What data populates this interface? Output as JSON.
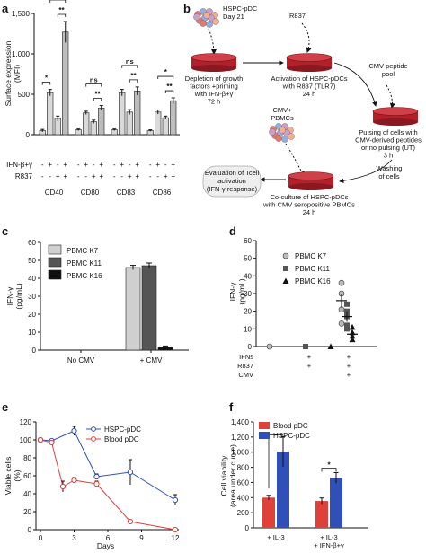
{
  "panels": {
    "a": "a",
    "b": "b",
    "c": "c",
    "d": "d",
    "e": "e",
    "f": "f"
  },
  "colors": {
    "red": "#e0403a",
    "blue": "#3050b8",
    "dish": "#b3202a",
    "bar_light": "#cfcfcf",
    "bar_dark": "#555555",
    "bar_black": "#111111"
  },
  "chart_data": [
    {
      "id": "a",
      "type": "bar",
      "ylabel": "Surface expression (MFI)",
      "ylim": [
        0,
        1500
      ],
      "yticks": [
        "0",
        "500",
        "1,000",
        "1,500"
      ],
      "categories": [
        "CD40",
        "CD80",
        "CD83",
        "CD86"
      ],
      "row_labels": [
        "IFN-β+γ",
        "R837"
      ],
      "condition_signs": {
        "ifn": [
          "-",
          "+",
          "-",
          "+"
        ],
        "r837": [
          "-",
          "-",
          "+",
          "+"
        ]
      },
      "groups": [
        {
          "name": "CD40",
          "values": [
            50,
            520,
            200,
            1270
          ],
          "errors": [
            15,
            40,
            30,
            130
          ]
        },
        {
          "name": "CD80",
          "values": [
            60,
            270,
            160,
            330
          ],
          "errors": [
            10,
            20,
            20,
            30
          ]
        },
        {
          "name": "CD83",
          "values": [
            60,
            520,
            280,
            540
          ],
          "errors": [
            10,
            40,
            30,
            50
          ]
        },
        {
          "name": "CD86",
          "values": [
            50,
            280,
            210,
            420
          ],
          "errors": [
            10,
            25,
            20,
            35
          ]
        }
      ],
      "annotations": [
        {
          "group": 0,
          "bars": [
            0,
            1
          ],
          "text": "*"
        },
        {
          "group": 0,
          "bars": [
            2,
            3
          ],
          "text": "**"
        },
        {
          "group": 0,
          "bars": [
            1,
            3
          ],
          "text": "*"
        },
        {
          "group": 1,
          "bars": [
            1,
            3
          ],
          "text": "ns"
        },
        {
          "group": 1,
          "bars": [
            2,
            3
          ],
          "text": "**"
        },
        {
          "group": 2,
          "bars": [
            1,
            3
          ],
          "text": "ns"
        },
        {
          "group": 2,
          "bars": [
            2,
            3
          ],
          "text": "**"
        },
        {
          "group": 3,
          "bars": [
            1,
            3
          ],
          "text": "*"
        },
        {
          "group": 3,
          "bars": [
            2,
            3
          ],
          "text": "**"
        }
      ]
    },
    {
      "id": "c",
      "type": "bar",
      "ylabel": "IFN-γ (pg/mL)",
      "ylim": [
        0,
        60
      ],
      "yticks": [
        "0",
        "10",
        "20",
        "30",
        "40",
        "50",
        "60"
      ],
      "categories": [
        "No CMV",
        "+ CMV"
      ],
      "series": [
        {
          "name": "PBMC K7",
          "values": [
            0,
            46
          ],
          "errors": [
            0,
            1.2
          ]
        },
        {
          "name": "PBMC K11",
          "values": [
            0,
            47
          ],
          "errors": [
            0,
            1.5
          ]
        },
        {
          "name": "PBMC K16",
          "values": [
            0,
            1.5
          ],
          "errors": [
            0,
            0.8
          ]
        }
      ]
    },
    {
      "id": "d",
      "type": "scatter",
      "ylabel": "IFN-γ (pg/mL)",
      "ylim": [
        0,
        60
      ],
      "yticks": [
        "0",
        "10",
        "20",
        "30",
        "40",
        "50",
        "60"
      ],
      "row_labels": [
        "IFNs",
        "R837",
        "CMV"
      ],
      "condition_signs": [
        [
          "",
          "+",
          "+"
        ],
        [
          "",
          "+",
          "+"
        ],
        [
          "",
          "",
          "+"
        ]
      ],
      "series": [
        {
          "name": "PBMC K7",
          "points": [
            {
              "x": 0,
              "y": 0
            },
            {
              "x": 2,
              "y": 36
            },
            {
              "x": 2,
              "y": 30
            },
            {
              "x": 2,
              "y": 21
            },
            {
              "x": 2,
              "y": 13
            }
          ],
          "mean": [
            0,
            26
          ],
          "sem": [
            0,
            4
          ]
        },
        {
          "name": "PBMC K11",
          "points": [
            {
              "x": 1,
              "y": 0
            },
            {
              "x": 2.15,
              "y": 24
            },
            {
              "x": 2.15,
              "y": 20
            },
            {
              "x": 2.15,
              "y": 17
            },
            {
              "x": 2.15,
              "y": 12
            },
            {
              "x": 2.15,
              "y": 10
            }
          ],
          "mean": [
            0,
            17
          ],
          "sem": [
            0,
            3
          ]
        },
        {
          "name": "PBMC K16",
          "points": [
            {
              "x": 1.7,
              "y": 0
            },
            {
              "x": 2.3,
              "y": 11
            },
            {
              "x": 2.3,
              "y": 8
            },
            {
              "x": 2.3,
              "y": 6
            },
            {
              "x": 2.3,
              "y": 4
            }
          ],
          "mean": [
            0,
            7
          ],
          "sem": [
            0,
            1.5
          ]
        }
      ]
    },
    {
      "id": "e",
      "type": "line",
      "xlabel": "Days",
      "ylabel": "Viable cells (%)",
      "xlim": [
        0,
        12
      ],
      "ylim": [
        0,
        120
      ],
      "xticks": [
        "0",
        "3",
        "6",
        "9",
        "12"
      ],
      "yticks": [
        "0",
        "20",
        "40",
        "60",
        "80",
        "100",
        "120"
      ],
      "series": [
        {
          "name": "HSPC-pDC",
          "x": [
            0,
            1,
            3,
            5,
            8,
            12
          ],
          "y": [
            100,
            99,
            110,
            59,
            64,
            33
          ],
          "errors": [
            1,
            2,
            5,
            3,
            14,
            6
          ]
        },
        {
          "name": "Blood pDC",
          "x": [
            0,
            1,
            2,
            3,
            5,
            8,
            12
          ],
          "y": [
            100,
            97,
            48,
            55,
            51,
            9,
            0
          ],
          "errors": [
            1,
            2,
            6,
            3,
            3,
            2,
            0.5
          ]
        }
      ]
    },
    {
      "id": "f",
      "type": "bar",
      "ylabel": "Cell viability (area under curve)",
      "ylim": [
        0,
        1400
      ],
      "yticks": [
        "0",
        "200",
        "400",
        "600",
        "800",
        "1,000",
        "1,200",
        "1,400"
      ],
      "categories": [
        "+ IL-3",
        "+ IL-3\n+ IFN-β+γ"
      ],
      "series": [
        {
          "name": "Blood pDC",
          "values": [
            400,
            355
          ],
          "errors": [
            30,
            40
          ]
        },
        {
          "name": "HSPC-pDC",
          "values": [
            1005,
            660
          ],
          "errors": [
            200,
            70
          ]
        }
      ],
      "annotations": [
        {
          "category": 1,
          "text": "*"
        }
      ]
    }
  ],
  "diagram": {
    "top_cells_label": "HSPC-pDC\nDay 21",
    "r837_label": "R837",
    "cmv_pool_label": "CMV peptide\npool",
    "pbmc_label": "CMV+\nPBMCs",
    "steps": [
      "Depletion of growth\nfactors +priming\nwith IFN-β+γ\n72 h",
      "Activation of HSPC-pDCs\nwith R837 (TLR7)\n24 h",
      "Pulsing of cells with\nCMV-derived peptides\nor no pulsing (UT)\n3 h",
      "Co-culture of HSPC-pDCs\nwith CMV seropositive PBMCs\n24 h",
      "Evaluation of Tcell\nactivation\n(IFN-γ response)"
    ],
    "washing_label": "Washing\nof cells"
  }
}
